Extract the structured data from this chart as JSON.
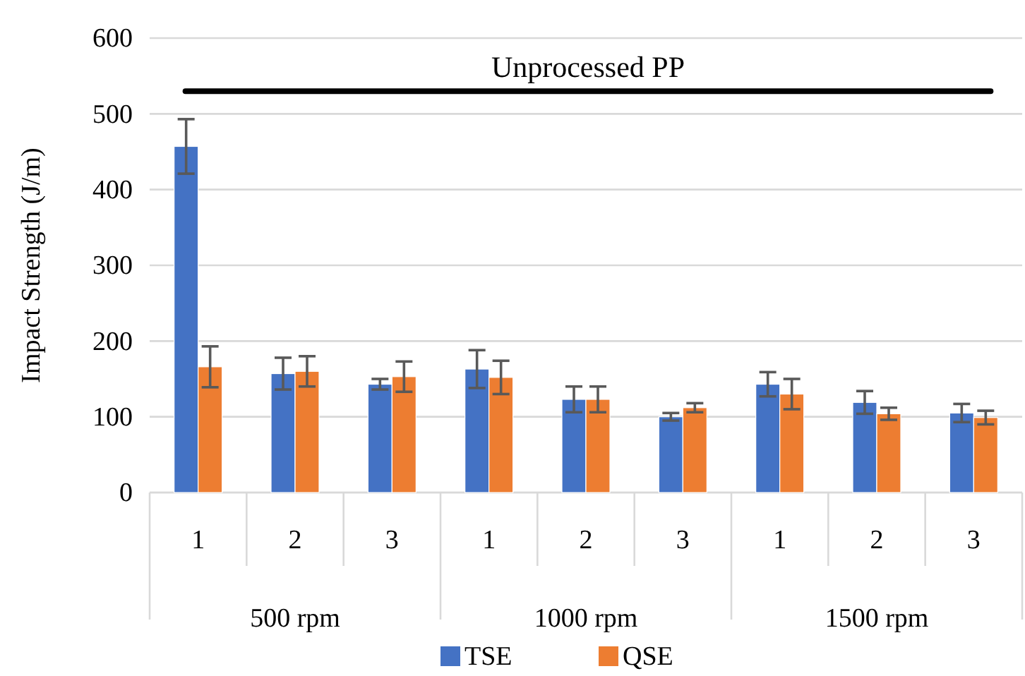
{
  "chart_data": {
    "type": "bar",
    "ylabel": "Impact Strength (J/m)",
    "categories": [
      "1",
      "2",
      "3",
      "1",
      "2",
      "3",
      "1",
      "2",
      "3"
    ],
    "annotations": [
      "500 rpm",
      "1000 rpm",
      "1500 rpm"
    ],
    "series": [
      {
        "name": "TSE",
        "color": "#4472c4",
        "values": [
          457,
          157,
          143,
          163,
          123,
          100,
          143,
          119,
          105
        ],
        "errors": [
          36,
          21,
          7,
          25,
          17,
          5,
          16,
          15,
          12
        ]
      },
      {
        "name": "QSE",
        "color": "#ed7d31",
        "values": [
          166,
          160,
          153,
          152,
          123,
          112,
          130,
          104,
          99
        ],
        "errors": [
          27,
          20,
          20,
          22,
          17,
          6,
          20,
          8,
          9
        ]
      }
    ],
    "ylim": [
      0,
      600
    ],
    "yticks": [
      0,
      100,
      200,
      300,
      400,
      500,
      600
    ],
    "grid": "y",
    "legend": "bottom",
    "ref_lines": [
      {
        "axis": "y",
        "value": 530,
        "label": "Unprocessed PP",
        "color": "#000000"
      }
    ]
  }
}
